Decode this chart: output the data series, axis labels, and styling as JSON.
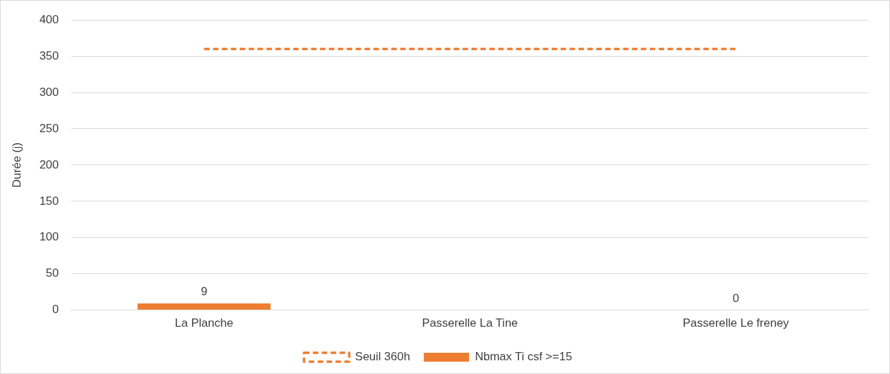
{
  "chart_data": {
    "type": "bar",
    "ylabel": "Durée (j)",
    "categories": [
      "La Planche",
      "Passerelle La Tine",
      "Passerelle Le freney"
    ],
    "series": [
      {
        "name": "Nbmax Ti csf >=15",
        "color": "#ed7d31",
        "values": [
          9,
          null,
          0
        ],
        "value_labels": [
          "9",
          null,
          "0"
        ]
      },
      {
        "name": "Seuil 360h",
        "type": "line",
        "color": "#ed7d31",
        "values": [
          360,
          360,
          360
        ],
        "line_style": "dashed",
        "marker": "none"
      }
    ],
    "ylim": [
      0,
      400
    ],
    "yticks": [
      0,
      50,
      100,
      150,
      200,
      250,
      300,
      350,
      400
    ],
    "grid": "y",
    "legend": "bottom"
  }
}
